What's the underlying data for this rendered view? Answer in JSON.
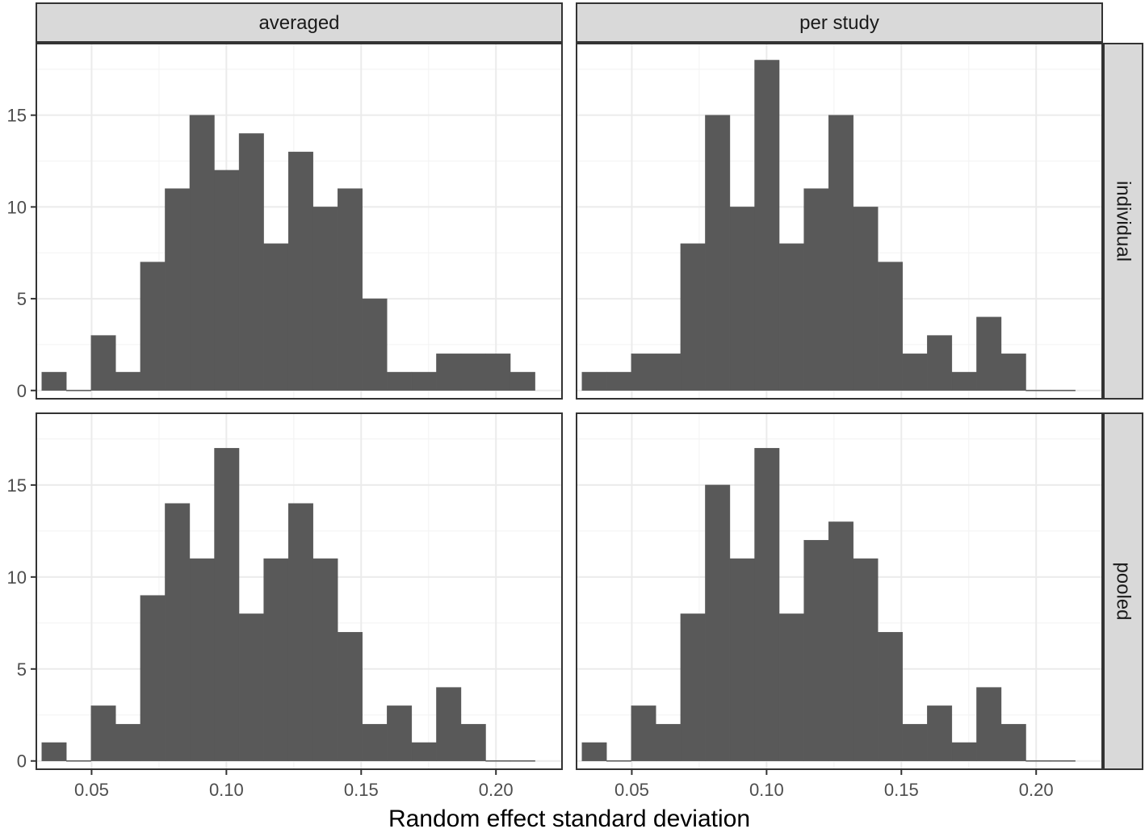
{
  "chart_data": {
    "type": "bar",
    "layout": "facet-grid",
    "xlabel": "Random effect standard deviation",
    "ylabel": "",
    "xlim": [
      0.0295,
      0.2245
    ],
    "ylim": [
      -0.45,
      18.9
    ],
    "x_ticks": [
      0.05,
      0.1,
      0.15,
      0.2
    ],
    "x_tick_labels": [
      "0.05",
      "0.10",
      "0.15",
      "0.20"
    ],
    "y_ticks": [
      0,
      5,
      10,
      15
    ],
    "y_tick_labels": [
      "0",
      "5",
      "10",
      "15"
    ],
    "grid": true,
    "column_strips": [
      "averaged",
      "per study"
    ],
    "row_strips": [
      "individual",
      "pooled"
    ],
    "bin_start": 0.0315,
    "bin_width": 0.00915,
    "colors": {
      "bar": "#595959",
      "grid_major": "#ebebeb",
      "grid_minor": "#f4f4f4",
      "strip_fill": "#d9d9d9",
      "border": "#333333"
    },
    "panels": [
      {
        "col": "averaged",
        "row": "individual",
        "counts": [
          1,
          0,
          3,
          1,
          7,
          11,
          15,
          12,
          14,
          8,
          13,
          10,
          11,
          5,
          1,
          1,
          2,
          2,
          2,
          1
        ]
      },
      {
        "col": "per study",
        "row": "individual",
        "counts": [
          1,
          1,
          2,
          2,
          8,
          15,
          10,
          18,
          8,
          11,
          15,
          10,
          7,
          2,
          3,
          1,
          4,
          2,
          0,
          0
        ]
      },
      {
        "col": "averaged",
        "row": "pooled",
        "counts": [
          1,
          0,
          3,
          2,
          9,
          14,
          11,
          17,
          8,
          11,
          14,
          11,
          7,
          2,
          3,
          1,
          4,
          2,
          0,
          0
        ]
      },
      {
        "col": "per study",
        "row": "pooled",
        "counts": [
          1,
          0,
          3,
          2,
          8,
          15,
          11,
          17,
          8,
          12,
          13,
          11,
          7,
          2,
          3,
          1,
          4,
          2,
          0,
          0
        ]
      }
    ]
  }
}
